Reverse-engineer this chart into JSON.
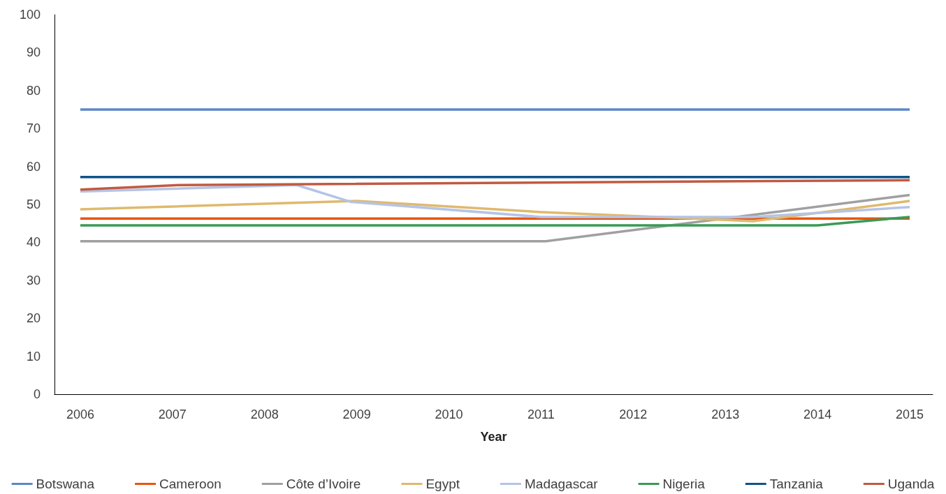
{
  "chart_data": {
    "type": "line",
    "xlabel": "Year",
    "xlim": [
      2005.72,
      2015.25
    ],
    "xticks": [
      2006,
      2007,
      2008,
      2009,
      2010,
      2011,
      2012,
      2013,
      2014,
      2015
    ],
    "ylim": [
      0,
      100
    ],
    "yticks": [
      0,
      10,
      20,
      30,
      40,
      50,
      60,
      70,
      80,
      90,
      100
    ],
    "grid": false,
    "legend": "bottom",
    "marker": "none",
    "line_style": "solid",
    "series": [
      {
        "name": "Botswana",
        "color": "#5b87c7",
        "x": [
          2006,
          2015
        ],
        "values": [
          75,
          75
        ]
      },
      {
        "name": "Cameroon",
        "color": "#e8560f",
        "x": [
          2006,
          2015
        ],
        "values": [
          46.3,
          46.3
        ]
      },
      {
        "name": "Côte d’Ivoire",
        "color": "#a0a0a0",
        "x": [
          2006,
          2011.05,
          2015
        ],
        "values": [
          40.3,
          40.3,
          52.5
        ]
      },
      {
        "name": "Egypt",
        "color": "#dfb96e",
        "x": [
          2006,
          2009,
          2011,
          2013.3,
          2015
        ],
        "values": [
          48.7,
          50.9,
          48.0,
          45.6,
          50.9
        ]
      },
      {
        "name": "Madagascar",
        "color": "#b4c4e6",
        "x": [
          2006,
          2008.35,
          2008.93,
          2011,
          2013.3,
          2015
        ],
        "values": [
          53.4,
          55.1,
          50.7,
          46.7,
          46.7,
          49.3
        ]
      },
      {
        "name": "Nigeria",
        "color": "#3a9a55",
        "x": [
          2006,
          2014,
          2015
        ],
        "values": [
          44.5,
          44.5,
          46.7
        ]
      },
      {
        "name": "Tanzania",
        "color": "#10538a",
        "x": [
          2006,
          2015
        ],
        "values": [
          57.2,
          57.2
        ]
      },
      {
        "name": "Uganda",
        "color": "#c05a41",
        "x": [
          2006,
          2007.07,
          2015
        ],
        "values": [
          53.9,
          55.1,
          56.4
        ]
      }
    ]
  }
}
